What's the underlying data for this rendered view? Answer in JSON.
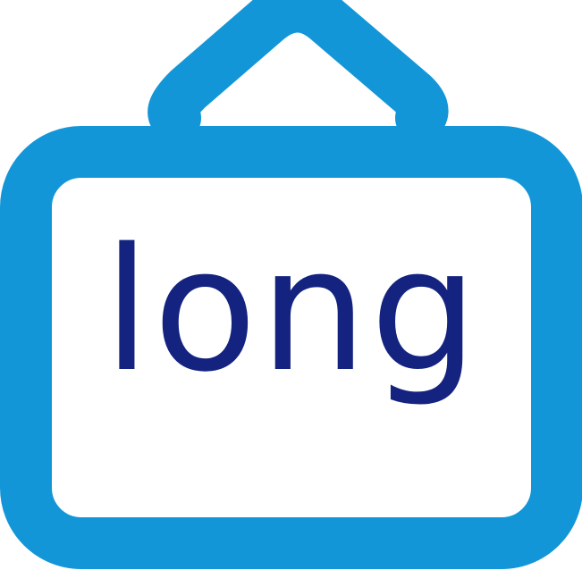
{
  "sign": {
    "word": "long",
    "icon": "hanging-sign-icon",
    "frame_color": "#1396d8",
    "text_color": "#14237f",
    "background_color": "#ffffff"
  }
}
